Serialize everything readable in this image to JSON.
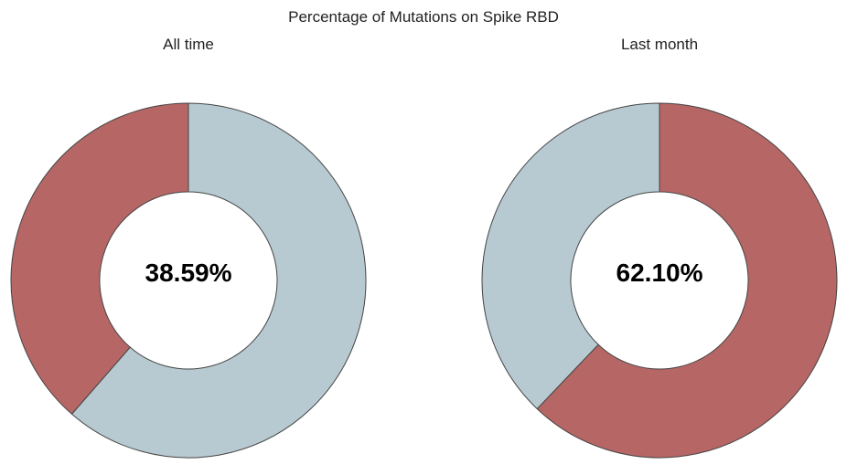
{
  "chart_data": {
    "type": "pie",
    "title": "Percentage of Mutations on Spike RBD",
    "colors": {
      "highlight": "#b76666",
      "rest": "#b8cad1",
      "stroke": "#444444"
    },
    "charts": [
      {
        "subtitle": "All time",
        "value": 38.59,
        "label": "38.59%",
        "direction": "counterclockwise"
      },
      {
        "subtitle": "Last month",
        "value": 62.1,
        "label": "62.10%",
        "direction": "clockwise"
      }
    ]
  }
}
